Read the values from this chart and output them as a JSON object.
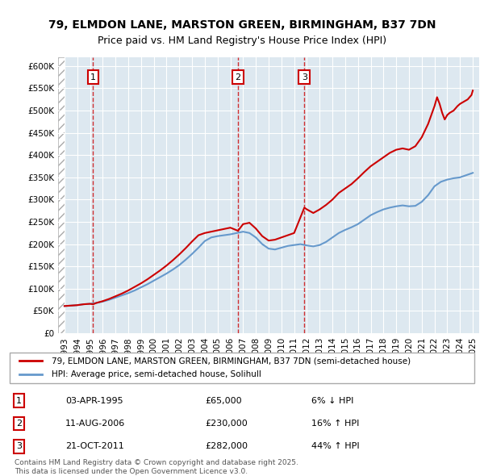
{
  "title": "79, ELMDON LANE, MARSTON GREEN, BIRMINGHAM, B37 7DN",
  "subtitle": "Price paid vs. HM Land Registry's House Price Index (HPI)",
  "legend_line1": "79, ELMDON LANE, MARSTON GREEN, BIRMINGHAM, B37 7DN (semi-detached house)",
  "legend_line2": "HPI: Average price, semi-detached house, Solihull",
  "footer": "Contains HM Land Registry data © Crown copyright and database right 2025.\nThis data is licensed under the Open Government Licence v3.0.",
  "sales": [
    {
      "num": 1,
      "date": "03-APR-1995",
      "price": 65000,
      "pct": "6%",
      "dir": "↓",
      "year": 1995.25
    },
    {
      "num": 2,
      "date": "11-AUG-2006",
      "price": 230000,
      "pct": "16%",
      "dir": "↑",
      "year": 2006.6
    },
    {
      "num": 3,
      "date": "21-OCT-2011",
      "price": 282000,
      "pct": "44%",
      "dir": "↑",
      "year": 2011.8
    }
  ],
  "ylim": [
    0,
    620000
  ],
  "yticks": [
    0,
    50000,
    100000,
    150000,
    200000,
    250000,
    300000,
    350000,
    400000,
    450000,
    500000,
    550000,
    600000
  ],
  "xlim": [
    1992.5,
    2025.5
  ],
  "xticks": [
    1993,
    1994,
    1995,
    1996,
    1997,
    1998,
    1999,
    2000,
    2001,
    2002,
    2003,
    2004,
    2005,
    2006,
    2007,
    2008,
    2009,
    2010,
    2011,
    2012,
    2013,
    2014,
    2015,
    2016,
    2017,
    2018,
    2019,
    2020,
    2021,
    2022,
    2023,
    2024,
    2025
  ],
  "hpi_color": "#6699cc",
  "price_color": "#cc0000",
  "hpi_data_x": [
    1993,
    1993.5,
    1994,
    1994.5,
    1995,
    1995.5,
    1996,
    1996.5,
    1997,
    1997.5,
    1998,
    1998.5,
    1999,
    1999.5,
    2000,
    2000.5,
    2001,
    2001.5,
    2002,
    2002.5,
    2003,
    2003.5,
    2004,
    2004.5,
    2005,
    2005.5,
    2006,
    2006.5,
    2007,
    2007.5,
    2008,
    2008.5,
    2009,
    2009.5,
    2010,
    2010.5,
    2011,
    2011.5,
    2012,
    2012.5,
    2013,
    2013.5,
    2014,
    2014.5,
    2015,
    2015.5,
    2016,
    2016.5,
    2017,
    2017.5,
    2018,
    2018.5,
    2019,
    2019.5,
    2020,
    2020.5,
    2021,
    2021.5,
    2022,
    2022.5,
    2023,
    2023.5,
    2024,
    2024.5,
    2025
  ],
  "hpi_data_y": [
    61000,
    62000,
    63000,
    65000,
    66000,
    68000,
    71000,
    75000,
    80000,
    85000,
    90000,
    96000,
    103000,
    110000,
    118000,
    126000,
    134000,
    143000,
    153000,
    165000,
    178000,
    192000,
    207000,
    215000,
    218000,
    220000,
    222000,
    225000,
    228000,
    225000,
    215000,
    200000,
    190000,
    188000,
    192000,
    196000,
    198000,
    200000,
    197000,
    195000,
    198000,
    205000,
    215000,
    225000,
    232000,
    238000,
    245000,
    255000,
    265000,
    272000,
    278000,
    282000,
    285000,
    287000,
    285000,
    286000,
    295000,
    310000,
    330000,
    340000,
    345000,
    348000,
    350000,
    355000,
    360000
  ],
  "price_data_x": [
    1993,
    1993.5,
    1994,
    1994.5,
    1995,
    1995.25,
    1995.5,
    1996,
    1996.5,
    1997,
    1997.5,
    1998,
    1998.5,
    1999,
    1999.5,
    2000,
    2000.5,
    2001,
    2001.5,
    2002,
    2002.5,
    2003,
    2003.5,
    2004,
    2004.5,
    2005,
    2005.5,
    2006,
    2006.6,
    2007,
    2007.5,
    2008,
    2008.5,
    2009,
    2009.5,
    2010,
    2010.5,
    2011,
    2011.8,
    2012,
    2012.5,
    2013,
    2013.5,
    2014,
    2014.5,
    2015,
    2015.5,
    2016,
    2016.5,
    2017,
    2017.5,
    2018,
    2018.5,
    2019,
    2019.5,
    2020,
    2020.5,
    2021,
    2021.5,
    2022,
    2022.2,
    2022.4,
    2022.6,
    2022.8,
    2023,
    2023.2,
    2023.5,
    2023.8,
    2024,
    2024.3,
    2024.6,
    2024.9,
    2025
  ],
  "price_data_y": [
    61000,
    62000,
    63000,
    65000,
    66000,
    65000,
    68000,
    72000,
    77000,
    83000,
    89000,
    96000,
    104000,
    112000,
    121000,
    131000,
    141000,
    152000,
    164000,
    177000,
    191000,
    206000,
    220000,
    225000,
    228000,
    231000,
    234000,
    237000,
    230000,
    245000,
    248000,
    235000,
    218000,
    208000,
    210000,
    215000,
    220000,
    225000,
    282000,
    278000,
    270000,
    278000,
    288000,
    300000,
    315000,
    325000,
    335000,
    348000,
    362000,
    375000,
    385000,
    395000,
    405000,
    412000,
    415000,
    412000,
    420000,
    440000,
    470000,
    510000,
    530000,
    515000,
    495000,
    480000,
    490000,
    495000,
    500000,
    510000,
    515000,
    520000,
    525000,
    535000,
    545000
  ]
}
